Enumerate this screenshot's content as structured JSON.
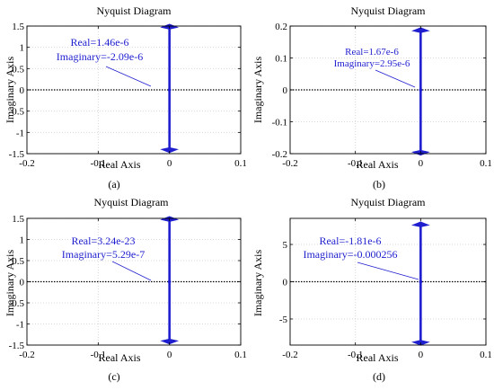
{
  "colors": {
    "series": "#1f1fcf",
    "axes": "#000000",
    "grid": "#d9d9d9",
    "zero_line": "#000000"
  },
  "panels": [
    {
      "title": "Nyquist Diagram",
      "xlabel": "Real Axis",
      "ylabel": "Imaginary Axis",
      "tag": "(a)",
      "annotation": [
        "Real=1.46e-6",
        "Imaginary=-2.09e-6"
      ]
    },
    {
      "title": "Nyquist Diagram",
      "xlabel": "Real Axis",
      "ylabel": "Imaginary Axis",
      "tag": "(b)",
      "annotation": [
        "Real=1.67e-6",
        "Imaginary=2.95e-6"
      ]
    },
    {
      "title": "Nyquist Diagram",
      "xlabel": "Real Axis",
      "ylabel": "Imaginary Axis",
      "tag": "(c)",
      "annotation": [
        "Real=3.24e-23",
        "Imaginary=5.29e-7"
      ]
    },
    {
      "title": "Nyquist Diagram",
      "xlabel": "Real Axis",
      "ylabel": "Imaginary Axis",
      "tag": "(d)",
      "annotation": [
        "Real=-1.81e-6",
        "Imaginary=-0.000256"
      ]
    }
  ],
  "chart_data": [
    {
      "type": "line",
      "title": "Nyquist Diagram",
      "xlabel": "Real Axis",
      "ylabel": "Imaginary Axis",
      "xlim": [
        -0.2,
        0.1
      ],
      "ylim": [
        -1.5,
        1.5
      ],
      "grid": true,
      "xticks": [
        -0.2,
        -0.1,
        0,
        0.1
      ],
      "xticklabels": [
        "-0.2",
        "-0.1",
        "0",
        "0.1"
      ],
      "yticks": [
        -1.5,
        -1,
        -0.5,
        0,
        0.5,
        1,
        1.5
      ],
      "yticklabels": [
        "-1.5",
        "-1",
        "-0.5",
        "0",
        "0.5",
        "1",
        "1.5"
      ],
      "series": [
        {
          "x": [
            0,
            0
          ],
          "y": [
            -1.4,
            1.5
          ]
        }
      ],
      "arrows_y": [
        1.47,
        -1.4
      ],
      "marker": {
        "x": 1.46e-06,
        "y": -2.09e-06
      }
    },
    {
      "type": "line",
      "title": "Nyquist Diagram",
      "xlabel": "Real Axis",
      "ylabel": "Imaginary Axis",
      "xlim": [
        -0.2,
        0.1
      ],
      "ylim": [
        -0.2,
        0.2
      ],
      "grid": true,
      "xticks": [
        -0.2,
        -0.1,
        0,
        0.1
      ],
      "xticklabels": [
        "-0.2",
        "-0.1",
        "0",
        "0.1"
      ],
      "yticks": [
        -0.2,
        -0.1,
        0,
        0.1,
        0.2
      ],
      "yticklabels": [
        "-0.2",
        "-0.1",
        "0",
        "0.1",
        "0.2"
      ],
      "series": [
        {
          "x": [
            0,
            0
          ],
          "y": [
            -0.2,
            0.19
          ]
        }
      ],
      "arrows_y": [
        0.185,
        -0.195
      ],
      "marker": {
        "x": 1.67e-06,
        "y": 2.95e-06
      }
    },
    {
      "type": "line",
      "title": "Nyquist Diagram",
      "xlabel": "Real Axis",
      "ylabel": "Imaginary Axis",
      "xlim": [
        -0.2,
        0.1
      ],
      "ylim": [
        -1.5,
        1.5
      ],
      "grid": true,
      "xticks": [
        -0.2,
        -0.1,
        0,
        0.1
      ],
      "xticklabels": [
        "-0.2",
        "-0.1",
        "0",
        "0.1"
      ],
      "yticks": [
        -1.5,
        -1,
        -0.5,
        0,
        0.5,
        1,
        1.5
      ],
      "yticklabels": [
        "-1.5",
        "-1",
        "-0.5",
        "0",
        "0.5",
        "1",
        "1.5"
      ],
      "series": [
        {
          "x": [
            0,
            0
          ],
          "y": [
            -1.4,
            1.5
          ]
        }
      ],
      "arrows_y": [
        1.47,
        -1.4
      ],
      "marker": {
        "x": 3.24e-23,
        "y": 5.29e-07
      }
    },
    {
      "type": "line",
      "title": "Nyquist Diagram",
      "xlabel": "Real Axis",
      "ylabel": "Imaginary Axis",
      "xlim": [
        -0.2,
        0.1
      ],
      "ylim": [
        -8.5,
        8.5
      ],
      "grid": true,
      "xticks": [
        -0.2,
        -0.1,
        0,
        0.1
      ],
      "xticklabels": [
        "-0.2",
        "-0.1",
        "0",
        "0.1"
      ],
      "yticks": [
        -5,
        0,
        5
      ],
      "yticklabels": [
        "-5",
        "0",
        "5"
      ],
      "series": [
        {
          "x": [
            0,
            0
          ],
          "y": [
            -8.2,
            7.9
          ]
        }
      ],
      "arrows_y": [
        7.6,
        -8.1
      ],
      "marker": {
        "x": -1.81e-06,
        "y": -0.000256
      }
    }
  ]
}
